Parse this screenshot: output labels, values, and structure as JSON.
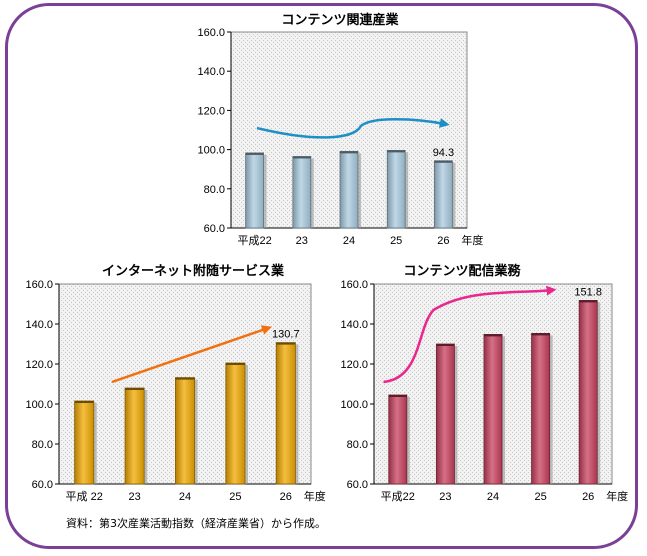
{
  "source_note": "資料：第3次産業活動指数（経済産業省）から作成。",
  "chart_data": [
    {
      "type": "bar",
      "title": "コンテンツ関連産業",
      "categories": [
        "平成22",
        "23",
        "24",
        "25",
        "26"
      ],
      "x_unit_label": "年度",
      "values": [
        98.3,
        96.5,
        99.1,
        99.6,
        94.3
      ],
      "ylim": [
        60,
        160
      ],
      "yticks": [
        "60.0",
        "80.0",
        "100.0",
        "120.0",
        "140.0",
        "160.0"
      ],
      "data_labels": {
        "4": "94.3"
      },
      "bar_color": "#a9cbe0",
      "trend_arrow_color": "#1e8fc6",
      "grid": false
    },
    {
      "type": "bar",
      "title": "インターネット附随サービス業",
      "categories": [
        "平成 22",
        "23",
        "24",
        "25",
        "26"
      ],
      "x_unit_label": "年度",
      "values": [
        101.5,
        108.0,
        113.2,
        120.5,
        130.7
      ],
      "ylim": [
        60,
        160
      ],
      "yticks": [
        "60.0",
        "80.0",
        "100.0",
        "120.0",
        "140.0",
        "160.0"
      ],
      "data_labels": {
        "4": "130.7"
      },
      "bar_color": "#f0a800",
      "trend_arrow_color": "#f07010",
      "grid": false
    },
    {
      "type": "bar",
      "title": "コンテンツ配信業務",
      "categories": [
        "平成22",
        "23",
        "24",
        "25",
        "26"
      ],
      "x_unit_label": "年度",
      "values": [
        104.5,
        130.0,
        134.8,
        135.3,
        151.8
      ],
      "ylim": [
        60,
        160
      ],
      "yticks": [
        "60.0",
        "80.0",
        "100.0",
        "120.0",
        "140.0",
        "160.0"
      ],
      "data_labels": {
        "4": "151.8"
      },
      "bar_color": "#c8405e",
      "trend_arrow_color": "#e8288c",
      "grid": false
    }
  ]
}
